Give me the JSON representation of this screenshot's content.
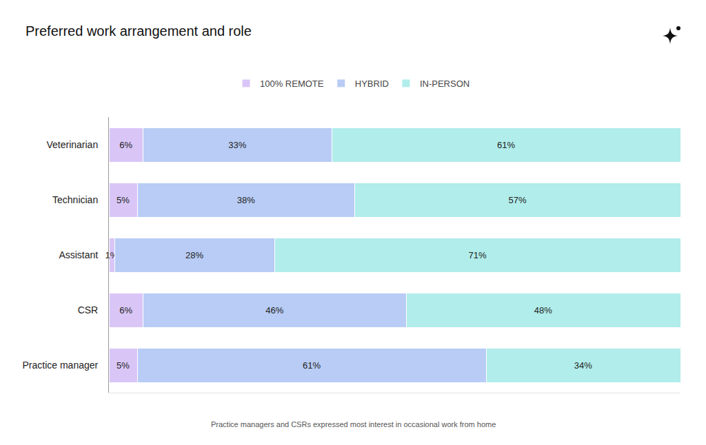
{
  "chart_data": {
    "type": "bar",
    "title": "Preferred work arrangement and role",
    "orientation": "horizontal",
    "stacked": true,
    "data_labels": true,
    "tick_labels": "y",
    "grid": false,
    "legend": "top",
    "xlim": [
      0,
      100
    ],
    "categories": [
      "Veterinarian",
      "Technician",
      "Assistant",
      "CSR",
      "Practice manager"
    ],
    "series": [
      {
        "name": "100% REMOTE",
        "color": "#d9c6f7",
        "values": [
          6,
          5,
          1,
          6,
          5
        ],
        "value_labels": [
          "6%",
          "5%",
          "1%",
          "6%",
          "5%"
        ]
      },
      {
        "name": "HYBRID",
        "color": "#b8ccf5",
        "values": [
          33,
          38,
          28,
          46,
          61
        ],
        "value_labels": [
          "33%",
          "38%",
          "28%",
          "46%",
          "61%"
        ]
      },
      {
        "name": "IN-PERSON",
        "color": "#b1edeb",
        "values": [
          61,
          57,
          71,
          48,
          34
        ],
        "value_labels": [
          "61%",
          "57%",
          "71%",
          "48%",
          "34%"
        ]
      }
    ],
    "annotations": [
      "Practice managers and CSRs expressed most interest in occasional work from home"
    ]
  }
}
